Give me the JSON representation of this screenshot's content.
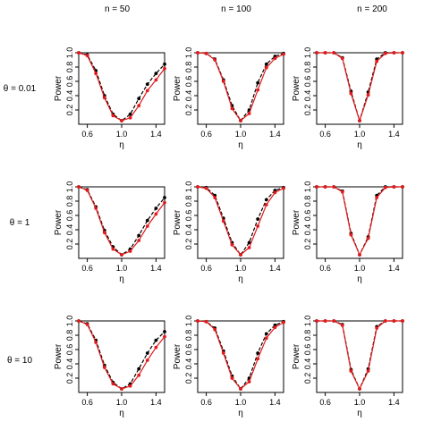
{
  "column_headers": [
    "n = 50",
    "n = 100",
    "n = 200"
  ],
  "row_headers": [
    "θ = 0.01",
    "θ = 1",
    "θ = 10"
  ],
  "colors": {
    "black_series": "#000000",
    "red_series": "#e41a1c"
  },
  "chart_data": [
    {
      "type": "line",
      "row": 0,
      "col": 0,
      "xlabel": "η",
      "ylabel": "Power",
      "xlim": [
        0.5,
        1.5
      ],
      "ylim": [
        0,
        1
      ],
      "xticks": [
        "0.6",
        "1.0",
        "1.4"
      ],
      "yticks": [
        "0.2",
        "0.4",
        "0.6",
        "0.8",
        "1.0"
      ],
      "x": [
        0.5,
        0.6,
        0.7,
        0.8,
        0.9,
        1.0,
        1.1,
        1.2,
        1.3,
        1.4,
        1.5
      ],
      "series": [
        {
          "color": "black",
          "values": [
            1.0,
            0.97,
            0.75,
            0.4,
            0.14,
            0.05,
            0.14,
            0.36,
            0.56,
            0.71,
            0.84
          ]
        },
        {
          "color": "red",
          "values": [
            1.0,
            0.96,
            0.71,
            0.37,
            0.12,
            0.05,
            0.09,
            0.26,
            0.47,
            0.62,
            0.78
          ]
        }
      ]
    },
    {
      "type": "line",
      "row": 0,
      "col": 1,
      "xlabel": "η",
      "ylabel": "Power",
      "xlim": [
        0.5,
        1.5
      ],
      "ylim": [
        0,
        1
      ],
      "xticks": [
        "0.6",
        "1.0",
        "1.4"
      ],
      "yticks": [
        "0.2",
        "0.4",
        "0.6",
        "0.8",
        "1.0"
      ],
      "x": [
        0.5,
        0.6,
        0.7,
        0.8,
        0.9,
        1.0,
        1.1,
        1.2,
        1.3,
        1.4,
        1.5
      ],
      "series": [
        {
          "color": "black",
          "values": [
            1.0,
            0.99,
            0.91,
            0.62,
            0.26,
            0.05,
            0.2,
            0.58,
            0.84,
            0.95,
            0.99
          ]
        },
        {
          "color": "red",
          "values": [
            1.0,
            0.99,
            0.9,
            0.6,
            0.22,
            0.05,
            0.15,
            0.48,
            0.79,
            0.92,
            0.98
          ]
        }
      ]
    },
    {
      "type": "line",
      "row": 0,
      "col": 2,
      "xlabel": "η",
      "ylabel": "Power",
      "xlim": [
        0.5,
        1.5
      ],
      "ylim": [
        0,
        1
      ],
      "xticks": [
        "0.6",
        "1.0",
        "1.4"
      ],
      "yticks": [
        "0.2",
        "0.4",
        "0.6",
        "0.8",
        "1.0"
      ],
      "x": [
        0.5,
        0.6,
        0.7,
        0.8,
        0.9,
        1.0,
        1.1,
        1.2,
        1.3,
        1.4,
        1.5
      ],
      "series": [
        {
          "color": "black",
          "values": [
            1.0,
            1.0,
            1.0,
            0.93,
            0.46,
            0.05,
            0.45,
            0.91,
            1.0,
            1.0,
            1.0
          ]
        },
        {
          "color": "red",
          "values": [
            1.0,
            1.0,
            1.0,
            0.92,
            0.43,
            0.05,
            0.41,
            0.88,
            0.99,
            1.0,
            1.0
          ]
        }
      ]
    },
    {
      "type": "line",
      "row": 1,
      "col": 0,
      "xlabel": "η",
      "ylabel": "Power",
      "xlim": [
        0.5,
        1.5
      ],
      "ylim": [
        0,
        1
      ],
      "xticks": [
        "0.6",
        "1.0",
        "1.4"
      ],
      "yticks": [
        "0.2",
        "0.4",
        "0.6",
        "0.8",
        "1.0"
      ],
      "x": [
        0.5,
        0.6,
        0.7,
        0.8,
        0.9,
        1.0,
        1.1,
        1.2,
        1.3,
        1.4,
        1.5
      ],
      "series": [
        {
          "color": "black",
          "values": [
            1.0,
            0.96,
            0.72,
            0.39,
            0.16,
            0.05,
            0.13,
            0.32,
            0.53,
            0.7,
            0.85
          ]
        },
        {
          "color": "red",
          "values": [
            1.0,
            0.95,
            0.7,
            0.36,
            0.13,
            0.05,
            0.1,
            0.25,
            0.45,
            0.62,
            0.78
          ]
        }
      ]
    },
    {
      "type": "line",
      "row": 1,
      "col": 1,
      "xlabel": "η",
      "ylabel": "Power",
      "xlim": [
        0.5,
        1.5
      ],
      "ylim": [
        0,
        1
      ],
      "xticks": [
        "0.6",
        "1.0",
        "1.4"
      ],
      "yticks": [
        "0.2",
        "0.4",
        "0.6",
        "0.8",
        "1.0"
      ],
      "x": [
        0.5,
        0.6,
        0.7,
        0.8,
        0.9,
        1.0,
        1.1,
        1.2,
        1.3,
        1.4,
        1.5
      ],
      "series": [
        {
          "color": "black",
          "values": [
            1.0,
            0.99,
            0.88,
            0.56,
            0.22,
            0.05,
            0.22,
            0.55,
            0.82,
            0.95,
            0.99
          ]
        },
        {
          "color": "red",
          "values": [
            1.0,
            0.98,
            0.85,
            0.52,
            0.19,
            0.05,
            0.15,
            0.45,
            0.75,
            0.92,
            0.98
          ]
        }
      ]
    },
    {
      "type": "line",
      "row": 1,
      "col": 2,
      "xlabel": "η",
      "ylabel": "Power",
      "xlim": [
        0.5,
        1.5
      ],
      "ylim": [
        0,
        1
      ],
      "xticks": [
        "0.6",
        "1.0",
        "1.4"
      ],
      "yticks": [
        "0.2",
        "0.4",
        "0.6",
        "0.8",
        "1.0"
      ],
      "x": [
        0.5,
        0.6,
        0.7,
        0.8,
        0.9,
        1.0,
        1.1,
        1.2,
        1.3,
        1.4,
        1.5
      ],
      "series": [
        {
          "color": "black",
          "values": [
            1.0,
            1.0,
            1.0,
            0.94,
            0.35,
            0.05,
            0.3,
            0.88,
            1.0,
            1.0,
            1.0
          ]
        },
        {
          "color": "red",
          "values": [
            1.0,
            1.0,
            1.0,
            0.93,
            0.33,
            0.05,
            0.28,
            0.85,
            0.99,
            1.0,
            1.0
          ]
        }
      ]
    },
    {
      "type": "line",
      "row": 2,
      "col": 0,
      "xlabel": "η",
      "ylabel": "Power",
      "xlim": [
        0.5,
        1.5
      ],
      "ylim": [
        0,
        1
      ],
      "xticks": [
        "0.6",
        "1.0",
        "1.4"
      ],
      "yticks": [
        "0.2",
        "0.4",
        "0.6",
        "0.8",
        "1.0"
      ],
      "x": [
        0.5,
        0.6,
        0.7,
        0.8,
        0.9,
        1.0,
        1.1,
        1.2,
        1.3,
        1.4,
        1.5
      ],
      "series": [
        {
          "color": "black",
          "values": [
            1.0,
            0.96,
            0.73,
            0.38,
            0.14,
            0.05,
            0.12,
            0.33,
            0.55,
            0.73,
            0.85
          ]
        },
        {
          "color": "red",
          "values": [
            1.0,
            0.95,
            0.7,
            0.35,
            0.12,
            0.05,
            0.09,
            0.24,
            0.45,
            0.63,
            0.78
          ]
        }
      ]
    },
    {
      "type": "line",
      "row": 2,
      "col": 1,
      "xlabel": "η",
      "ylabel": "Power",
      "xlim": [
        0.5,
        1.5
      ],
      "ylim": [
        0,
        1
      ],
      "xticks": [
        "0.6",
        "1.0",
        "1.4"
      ],
      "yticks": [
        "0.2",
        "0.4",
        "0.6",
        "0.8",
        "1.0"
      ],
      "x": [
        0.5,
        0.6,
        0.7,
        0.8,
        0.9,
        1.0,
        1.1,
        1.2,
        1.3,
        1.4,
        1.5
      ],
      "series": [
        {
          "color": "black",
          "values": [
            1.0,
            0.99,
            0.9,
            0.58,
            0.23,
            0.05,
            0.2,
            0.55,
            0.82,
            0.94,
            0.99
          ]
        },
        {
          "color": "red",
          "values": [
            1.0,
            0.99,
            0.88,
            0.55,
            0.2,
            0.05,
            0.15,
            0.47,
            0.76,
            0.91,
            0.98
          ]
        }
      ]
    },
    {
      "type": "line",
      "row": 2,
      "col": 2,
      "xlabel": "η",
      "ylabel": "Power",
      "xlim": [
        0.5,
        1.5
      ],
      "ylim": [
        0,
        1
      ],
      "xticks": [
        "0.6",
        "1.0",
        "1.4"
      ],
      "yticks": [
        "0.2",
        "0.4",
        "0.6",
        "0.8",
        "1.0"
      ],
      "x": [
        0.5,
        0.6,
        0.7,
        0.8,
        0.9,
        1.0,
        1.1,
        1.2,
        1.3,
        1.4,
        1.5
      ],
      "series": [
        {
          "color": "black",
          "values": [
            1.0,
            1.0,
            1.0,
            0.95,
            0.32,
            0.05,
            0.33,
            0.92,
            1.0,
            1.0,
            1.0
          ]
        },
        {
          "color": "red",
          "values": [
            1.0,
            1.0,
            1.0,
            0.94,
            0.3,
            0.05,
            0.3,
            0.9,
            1.0,
            1.0,
            1.0
          ]
        }
      ]
    }
  ]
}
